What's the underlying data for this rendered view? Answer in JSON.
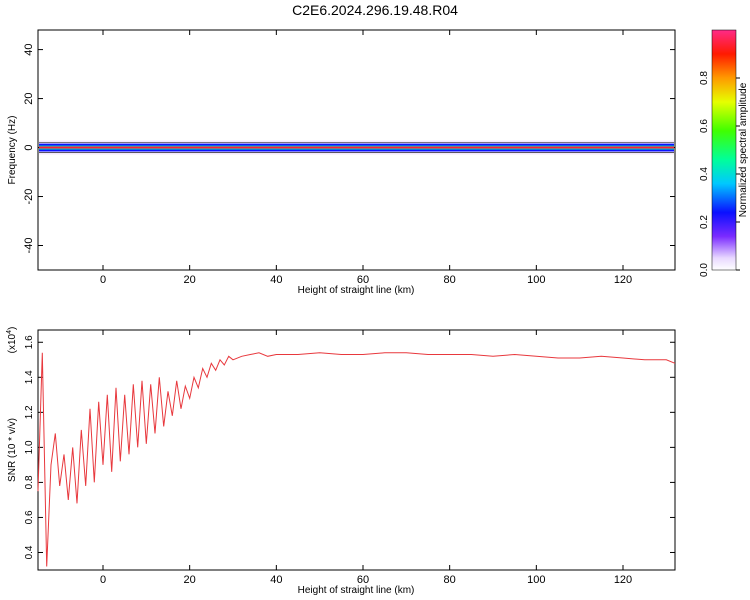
{
  "title": "C2E6.2024.296.19.48.R04",
  "chart_data": [
    {
      "type": "heatmap",
      "xlabel": "Height of straight line (km)",
      "ylabel": "Frequency (Hz)",
      "xlim": [
        -15,
        132
      ],
      "ylim": [
        -50,
        48
      ],
      "xticks": [
        0,
        20,
        40,
        60,
        80,
        100,
        120
      ],
      "yticks": [
        40,
        20,
        0,
        -20,
        -40
      ],
      "band_center_hz": 0,
      "colorbar": {
        "label": "Normalized spectral amplitude",
        "range": [
          0,
          1
        ],
        "ticks": [
          "0.0",
          "0.2",
          "0.4",
          "0.6",
          "0.8"
        ]
      }
    },
    {
      "type": "line",
      "xlabel": "Height of straight line (km)",
      "ylabel": "SNR (10 * v/v)",
      "exponent_label": "(x10",
      "exponent_power": "4",
      "exponent_close": ")",
      "xlim": [
        -15,
        132
      ],
      "ylim": [
        0.3,
        1.67
      ],
      "xticks": [
        0,
        20,
        40,
        60,
        80,
        100,
        120
      ],
      "yticks": [
        "0.4",
        "0.6",
        "0.8",
        "1.0",
        "1.2",
        "1.4",
        "1.6"
      ],
      "color": "#e8383d",
      "x": [
        -15,
        -14,
        -13,
        -12,
        -11,
        -10,
        -9,
        -8,
        -7,
        -6,
        -5,
        -4,
        -3,
        -2,
        -1,
        0,
        1,
        2,
        3,
        4,
        5,
        6,
        7,
        8,
        9,
        10,
        11,
        12,
        13,
        14,
        15,
        16,
        17,
        18,
        19,
        20,
        21,
        22,
        23,
        24,
        25,
        26,
        27,
        28,
        29,
        30,
        32,
        34,
        36,
        38,
        40,
        45,
        50,
        55,
        60,
        65,
        70,
        75,
        80,
        85,
        90,
        95,
        100,
        105,
        110,
        115,
        120,
        125,
        130,
        132
      ],
      "y": [
        0.75,
        1.54,
        0.32,
        0.9,
        1.08,
        0.78,
        0.96,
        0.7,
        1.0,
        0.68,
        1.1,
        0.78,
        1.22,
        0.8,
        1.26,
        0.9,
        1.3,
        0.86,
        1.34,
        0.92,
        1.3,
        0.96,
        1.36,
        1.0,
        1.38,
        1.02,
        1.36,
        1.08,
        1.4,
        1.12,
        1.32,
        1.18,
        1.38,
        1.22,
        1.35,
        1.28,
        1.4,
        1.34,
        1.45,
        1.4,
        1.48,
        1.44,
        1.5,
        1.47,
        1.52,
        1.5,
        1.52,
        1.53,
        1.54,
        1.52,
        1.53,
        1.53,
        1.54,
        1.53,
        1.53,
        1.54,
        1.54,
        1.53,
        1.53,
        1.53,
        1.52,
        1.53,
        1.52,
        1.51,
        1.51,
        1.52,
        1.51,
        1.5,
        1.5,
        1.48
      ]
    }
  ]
}
